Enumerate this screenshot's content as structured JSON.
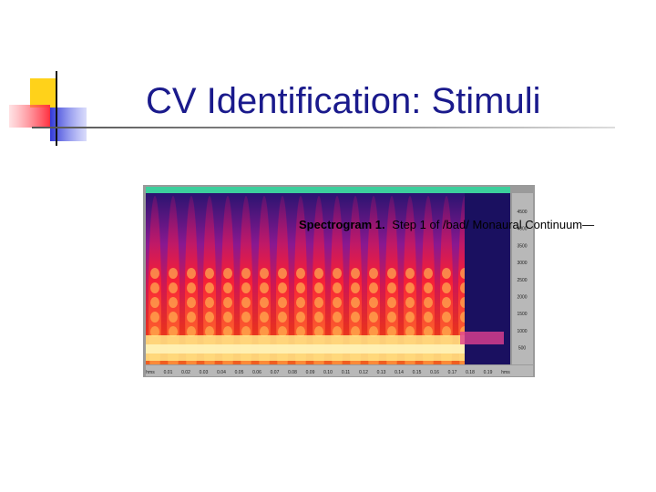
{
  "slide": {
    "title": "CV Identification: Stimuli",
    "figure": {
      "caption_label": "Spectrogram 1.",
      "caption_text": "Step 1 of /bad/ Monaural Continuum—",
      "y_axis_labels": [
        "4500",
        "4000",
        "3500",
        "3000",
        "2500",
        "2000",
        "1500",
        "1000",
        "500"
      ],
      "x_axis_labels": [
        "hms",
        "0.01",
        "0.02",
        "0.03",
        "0.04",
        "0.05",
        "0.06",
        "0.07",
        "0.08",
        "0.09",
        "0.10",
        "0.11",
        "0.12",
        "0.13",
        "0.14",
        "0.15",
        "0.16",
        "0.17",
        "0.18",
        "0.19",
        "hms"
      ]
    }
  }
}
